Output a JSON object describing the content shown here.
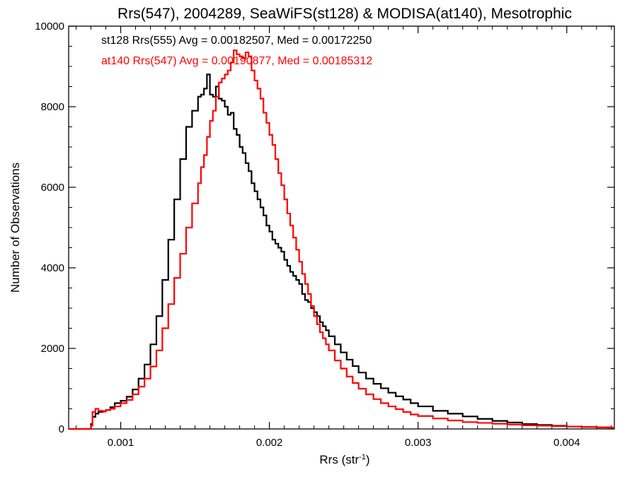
{
  "chart_data": {
    "type": "line",
    "style": "step-histogram",
    "title": "Rrs(547), 2004289, SeaWiFS(st128) & MODISA(at140), Mesotrophic",
    "xlabel": "Rrs (str",
    "xlabel_sup": "-1",
    "xlabel_end": ")",
    "ylabel": "Number of Observations",
    "xlim": [
      0.00065,
      0.00432
    ],
    "ylim": [
      0,
      10000
    ],
    "xticks": [
      0.001,
      0.002,
      0.003,
      0.004
    ],
    "xtick_labels": [
      "0.001",
      "0.002",
      "0.003",
      "0.004"
    ],
    "yticks": [
      0,
      2000,
      4000,
      6000,
      8000,
      10000
    ],
    "ytick_labels": [
      "0",
      "2000",
      "4000",
      "6000",
      "8000",
      "10000"
    ],
    "grid": false,
    "annotations": [
      {
        "text": "st128 Rrs(555) Avg = 0.00182507, Med = 0.00172250",
        "color": "#000000"
      },
      {
        "text": "at140 Rrs(547) Avg = 0.00190877, Med = 0.00185312",
        "color": "#ff0000"
      }
    ],
    "series": [
      {
        "color": "#000000",
        "x": [
          0.00065,
          0.0008,
          0.00081,
          0.00083,
          0.00085,
          0.00088,
          0.0009,
          0.00093,
          0.00096,
          0.001,
          0.00104,
          0.00108,
          0.00112,
          0.00116,
          0.0012,
          0.00124,
          0.00128,
          0.00132,
          0.00136,
          0.0014,
          0.00144,
          0.00148,
          0.00152,
          0.00154,
          0.00156,
          0.00158,
          0.0016,
          0.00162,
          0.00164,
          0.00166,
          0.00168,
          0.0017,
          0.00172,
          0.00174,
          0.00176,
          0.00178,
          0.0018,
          0.00182,
          0.00184,
          0.00186,
          0.00188,
          0.0019,
          0.00192,
          0.00194,
          0.00196,
          0.00198,
          0.002,
          0.00202,
          0.00204,
          0.00206,
          0.00208,
          0.0021,
          0.00212,
          0.00214,
          0.00216,
          0.00218,
          0.0022,
          0.00222,
          0.00224,
          0.00226,
          0.00228,
          0.0023,
          0.00232,
          0.00234,
          0.00236,
          0.00238,
          0.0024,
          0.00244,
          0.00248,
          0.00252,
          0.00256,
          0.0026,
          0.00265,
          0.0027,
          0.00275,
          0.0028,
          0.00285,
          0.0029,
          0.00295,
          0.003,
          0.0031,
          0.0032,
          0.0033,
          0.0034,
          0.0035,
          0.0036,
          0.0037,
          0.0038,
          0.0039,
          0.004,
          0.0041,
          0.0042,
          0.0043
        ],
        "values": [
          0,
          120,
          300,
          380,
          420,
          440,
          470,
          540,
          640,
          700,
          800,
          980,
          1250,
          1600,
          2100,
          2800,
          3700,
          4700,
          5700,
          6700,
          7500,
          7900,
          8250,
          8300,
          8450,
          8800,
          8300,
          8250,
          8500,
          8200,
          8150,
          8000,
          7800,
          7850,
          7450,
          7300,
          7000,
          6850,
          6600,
          6400,
          6100,
          5900,
          5700,
          5500,
          5300,
          5050,
          4900,
          4700,
          4600,
          4500,
          4400,
          4200,
          4050,
          3900,
          3800,
          3700,
          3600,
          3350,
          3200,
          3150,
          3000,
          2900,
          2800,
          2650,
          2550,
          2450,
          2300,
          2100,
          1900,
          1720,
          1560,
          1400,
          1250,
          1120,
          1010,
          900,
          810,
          730,
          640,
          560,
          450,
          380,
          310,
          250,
          200,
          160,
          120,
          100,
          80,
          60,
          50,
          40,
          30
        ]
      },
      {
        "color": "#ff0000",
        "x": [
          0.00065,
          0.0008,
          0.00081,
          0.00083,
          0.00085,
          0.00088,
          0.0009,
          0.00093,
          0.00096,
          0.001,
          0.00104,
          0.00108,
          0.00112,
          0.00116,
          0.0012,
          0.00124,
          0.00128,
          0.00132,
          0.00136,
          0.0014,
          0.00144,
          0.00148,
          0.00152,
          0.00154,
          0.00156,
          0.00158,
          0.0016,
          0.00162,
          0.00164,
          0.00166,
          0.00168,
          0.0017,
          0.00172,
          0.00174,
          0.00176,
          0.00178,
          0.0018,
          0.00182,
          0.00184,
          0.00186,
          0.00188,
          0.0019,
          0.00192,
          0.00194,
          0.00196,
          0.00198,
          0.002,
          0.00202,
          0.00204,
          0.00206,
          0.00208,
          0.0021,
          0.00212,
          0.00214,
          0.00216,
          0.00218,
          0.0022,
          0.00222,
          0.00224,
          0.00226,
          0.00228,
          0.0023,
          0.00232,
          0.00234,
          0.00236,
          0.00238,
          0.0024,
          0.00244,
          0.00248,
          0.00252,
          0.00256,
          0.0026,
          0.00265,
          0.0027,
          0.00275,
          0.0028,
          0.00285,
          0.0029,
          0.00295,
          0.003,
          0.0031,
          0.0032,
          0.0033,
          0.0034,
          0.0035,
          0.0036,
          0.0037,
          0.0038,
          0.0039,
          0.004,
          0.0041,
          0.0042,
          0.0043
        ],
        "values": [
          0,
          80,
          420,
          500,
          450,
          430,
          470,
          500,
          560,
          640,
          720,
          860,
          1050,
          1250,
          1550,
          1950,
          2500,
          3100,
          3750,
          4350,
          5000,
          5600,
          6100,
          6500,
          6800,
          7250,
          7650,
          7900,
          8250,
          8600,
          8700,
          8800,
          8900,
          9100,
          9400,
          9300,
          9250,
          9200,
          9350,
          9250,
          8900,
          8650,
          8450,
          8200,
          7850,
          7600,
          7300,
          7050,
          6700,
          6350,
          6050,
          5700,
          5350,
          5050,
          4750,
          4450,
          4150,
          3850,
          3600,
          3350,
          3050,
          2800,
          2600,
          2400,
          2250,
          2100,
          1950,
          1700,
          1500,
          1300,
          1140,
          1000,
          860,
          740,
          640,
          560,
          490,
          420,
          360,
          320,
          260,
          210,
          170,
          150,
          130,
          110,
          90,
          80,
          70,
          60,
          50,
          40,
          30
        ]
      }
    ]
  }
}
